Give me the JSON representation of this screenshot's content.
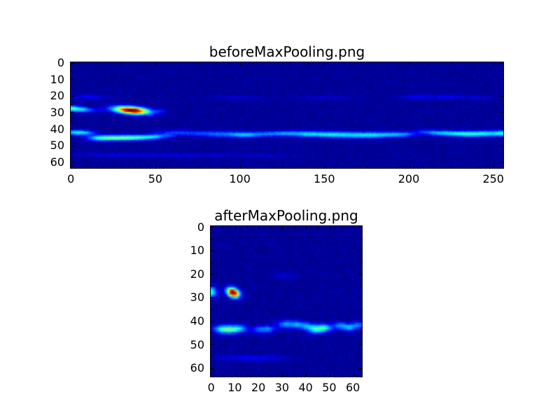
{
  "figure": {
    "background": "#ffffff",
    "text_color": "#000000",
    "axes_color": "#000000"
  },
  "chart_data": [
    {
      "type": "heatmap",
      "title": "beforeMaxPooling.png",
      "colormap": "jet",
      "colormap_low_color": "#000080",
      "grid": {
        "cols": 256,
        "rows": 64
      },
      "x_range": [
        -0.5,
        255.5
      ],
      "y_range": [
        63.5,
        -0.5
      ],
      "x_ticks": [
        0,
        50,
        100,
        150,
        200,
        250
      ],
      "x_minor_step": 25,
      "y_ticks": [
        0,
        10,
        20,
        30,
        40,
        50,
        60
      ],
      "y_minor_step": 5,
      "grid_lines": false,
      "legend": false,
      "background_level": 0.005,
      "noise_amplitude": 0.04,
      "noise_seed": 42,
      "blobs": [
        {
          "x": 35.5,
          "y": 28.6,
          "sx": 7,
          "sy": 1.5,
          "a": 1.05,
          "rot": 5
        },
        {
          "x": 0,
          "y": 27.5,
          "sx": 3,
          "sy": 1.3,
          "a": 0.38,
          "rot": 0
        },
        {
          "x": 6,
          "y": 28,
          "sx": 3,
          "sy": 1.1,
          "a": 0.28,
          "rot": 0
        },
        {
          "x": 12,
          "y": 28.5,
          "sx": 4,
          "sy": 0.9,
          "a": 0.13,
          "rot": 0
        },
        {
          "x": 53,
          "y": 29,
          "sx": 3,
          "sy": 0.8,
          "a": 0.1,
          "rot": 0
        },
        {
          "x": 16,
          "y": 45.3,
          "sx": 5,
          "sy": 1.15,
          "a": 0.3,
          "rot": 0
        },
        {
          "x": 25,
          "y": 45.3,
          "sx": 6,
          "sy": 1.15,
          "a": 0.33,
          "rot": 0
        },
        {
          "x": 34,
          "y": 45.2,
          "sx": 6,
          "sy": 1.1,
          "a": 0.32,
          "rot": 0
        },
        {
          "x": 43,
          "y": 44.9,
          "sx": 5,
          "sy": 1.05,
          "a": 0.28,
          "rot": 0
        },
        {
          "x": 50,
          "y": 44.4,
          "sx": 3.5,
          "sy": 1,
          "a": 0.22,
          "rot": 0
        },
        {
          "x": 57,
          "y": 44,
          "sx": 3,
          "sy": 0.9,
          "a": 0.14,
          "rot": 0
        },
        {
          "x": 2,
          "y": 42,
          "sx": 4,
          "sy": 1.1,
          "a": 0.3,
          "rot": 0
        },
        {
          "x": 9,
          "y": 42.2,
          "sx": 4,
          "sy": 1,
          "a": 0.22,
          "rot": 0
        },
        {
          "x": 60,
          "y": 42,
          "sx": 8,
          "sy": 1,
          "a": 0.13,
          "rot": 0
        },
        {
          "x": 74,
          "y": 42.5,
          "sx": 8,
          "sy": 1,
          "a": 0.12,
          "rot": 0
        },
        {
          "x": 90,
          "y": 43,
          "sx": 9,
          "sy": 1.2,
          "a": 0.2,
          "rot": 0
        },
        {
          "x": 103,
          "y": 43.5,
          "sx": 6,
          "sy": 1.1,
          "a": 0.24,
          "rot": 0
        },
        {
          "x": 115,
          "y": 42.8,
          "sx": 6,
          "sy": 1,
          "a": 0.17,
          "rot": 0
        },
        {
          "x": 128,
          "y": 42.6,
          "sx": 7,
          "sy": 1.1,
          "a": 0.24,
          "rot": 0
        },
        {
          "x": 141,
          "y": 43,
          "sx": 6,
          "sy": 1.2,
          "a": 0.26,
          "rot": 0
        },
        {
          "x": 153,
          "y": 43.2,
          "sx": 6,
          "sy": 1.2,
          "a": 0.28,
          "rot": 0
        },
        {
          "x": 166,
          "y": 43.5,
          "sx": 7,
          "sy": 1.3,
          "a": 0.29,
          "rot": 0
        },
        {
          "x": 179,
          "y": 43.5,
          "sx": 6,
          "sy": 1.2,
          "a": 0.28,
          "rot": 0
        },
        {
          "x": 190,
          "y": 43.2,
          "sx": 5,
          "sy": 1.1,
          "a": 0.24,
          "rot": 0
        },
        {
          "x": 198,
          "y": 43,
          "sx": 4,
          "sy": 1,
          "a": 0.18,
          "rot": 0
        },
        {
          "x": 208,
          "y": 41.5,
          "sx": 4,
          "sy": 1,
          "a": 0.12,
          "rot": 0
        },
        {
          "x": 216,
          "y": 42.2,
          "sx": 5,
          "sy": 1,
          "a": 0.22,
          "rot": 0
        },
        {
          "x": 226,
          "y": 42.6,
          "sx": 6,
          "sy": 1.1,
          "a": 0.27,
          "rot": 0
        },
        {
          "x": 236,
          "y": 43,
          "sx": 6,
          "sy": 1.2,
          "a": 0.28,
          "rot": 0
        },
        {
          "x": 247,
          "y": 42.6,
          "sx": 6,
          "sy": 1.2,
          "a": 0.3,
          "rot": 0
        },
        {
          "x": 255,
          "y": 42.4,
          "sx": 3,
          "sy": 1.1,
          "a": 0.26,
          "rot": 0
        },
        {
          "x": 10,
          "y": 20.5,
          "sx": 8,
          "sy": 1,
          "a": 0.1,
          "rot": 0
        },
        {
          "x": 97,
          "y": 21,
          "sx": 10,
          "sy": 0.9,
          "a": 0.06,
          "rot": 0
        },
        {
          "x": 150,
          "y": 21,
          "sx": 12,
          "sy": 0.9,
          "a": 0.05,
          "rot": 0
        },
        {
          "x": 205,
          "y": 20.5,
          "sx": 8,
          "sy": 0.9,
          "a": 0.09,
          "rot": 0
        },
        {
          "x": 223,
          "y": 20.5,
          "sx": 6,
          "sy": 0.9,
          "a": 0.09,
          "rot": 0
        },
        {
          "x": 240,
          "y": 21,
          "sx": 6,
          "sy": 0.9,
          "a": 0.07,
          "rot": 0
        },
        {
          "x": 30,
          "y": 55.5,
          "sx": 25,
          "sy": 0.9,
          "a": 0.07,
          "rot": 0
        },
        {
          "x": 75,
          "y": 55.5,
          "sx": 18,
          "sy": 0.8,
          "a": 0.05,
          "rot": 0
        },
        {
          "x": 115,
          "y": 56,
          "sx": 15,
          "sy": 0.8,
          "a": 0.04,
          "rot": 0
        }
      ]
    },
    {
      "type": "heatmap",
      "title": "afterMaxPooling.png",
      "colormap": "jet",
      "colormap_low_color": "#000080",
      "grid": {
        "cols": 64,
        "rows": 64
      },
      "x_range": [
        -0.5,
        63.5
      ],
      "y_range": [
        63.5,
        -0.5
      ],
      "x_ticks": [
        0,
        10,
        20,
        30,
        40,
        50,
        60
      ],
      "x_minor_step": 5,
      "y_ticks": [
        0,
        10,
        20,
        30,
        40,
        50,
        60
      ],
      "y_minor_step": 5,
      "grid_lines": false,
      "legend": false,
      "background_level": 0.005,
      "noise_amplitude": 0.04,
      "noise_seed": 7,
      "blobs": [
        {
          "x": 9,
          "y": 27.8,
          "sx": 1.9,
          "sy": 1.3,
          "a": 1.05,
          "rot": 25
        },
        {
          "x": -0.5,
          "y": 27.5,
          "sx": 1.8,
          "sy": 1.6,
          "a": 0.4,
          "rot": 0
        },
        {
          "x": 4,
          "y": 43.3,
          "sx": 2.5,
          "sy": 1.2,
          "a": 0.3,
          "rot": 0
        },
        {
          "x": 8,
          "y": 43.5,
          "sx": 2.5,
          "sy": 1.2,
          "a": 0.35,
          "rot": 0
        },
        {
          "x": 12,
          "y": 43,
          "sx": 2,
          "sy": 1.1,
          "a": 0.25,
          "rot": 0
        },
        {
          "x": 20,
          "y": 43.5,
          "sx": 2.5,
          "sy": 1.1,
          "a": 0.18,
          "rot": 0
        },
        {
          "x": 24,
          "y": 43.2,
          "sx": 2,
          "sy": 1,
          "a": 0.2,
          "rot": 0
        },
        {
          "x": 31,
          "y": 41.2,
          "sx": 2.2,
          "sy": 1.1,
          "a": 0.26,
          "rot": 0
        },
        {
          "x": 36,
          "y": 41.4,
          "sx": 2.2,
          "sy": 1.1,
          "a": 0.26,
          "rot": 0
        },
        {
          "x": 40,
          "y": 42,
          "sx": 1.8,
          "sy": 1,
          "a": 0.2,
          "rot": 0
        },
        {
          "x": 44,
          "y": 43.2,
          "sx": 2.5,
          "sy": 1.3,
          "a": 0.38,
          "rot": 0
        },
        {
          "x": 48,
          "y": 42.8,
          "sx": 2,
          "sy": 1.1,
          "a": 0.3,
          "rot": 0
        },
        {
          "x": 54,
          "y": 41.8,
          "sx": 2,
          "sy": 1,
          "a": 0.24,
          "rot": 0
        },
        {
          "x": 58,
          "y": 42.6,
          "sx": 2,
          "sy": 1.1,
          "a": 0.26,
          "rot": 0
        },
        {
          "x": 62,
          "y": 41.6,
          "sx": 1.8,
          "sy": 1,
          "a": 0.22,
          "rot": 0
        },
        {
          "x": 31,
          "y": 20.5,
          "sx": 3,
          "sy": 1,
          "a": 0.07,
          "rot": 0
        },
        {
          "x": 12,
          "y": 55.5,
          "sx": 9,
          "sy": 0.8,
          "a": 0.08,
          "rot": 0
        },
        {
          "x": 24,
          "y": 55.5,
          "sx": 6,
          "sy": 0.7,
          "a": 0.05,
          "rot": 0
        }
      ]
    }
  ]
}
